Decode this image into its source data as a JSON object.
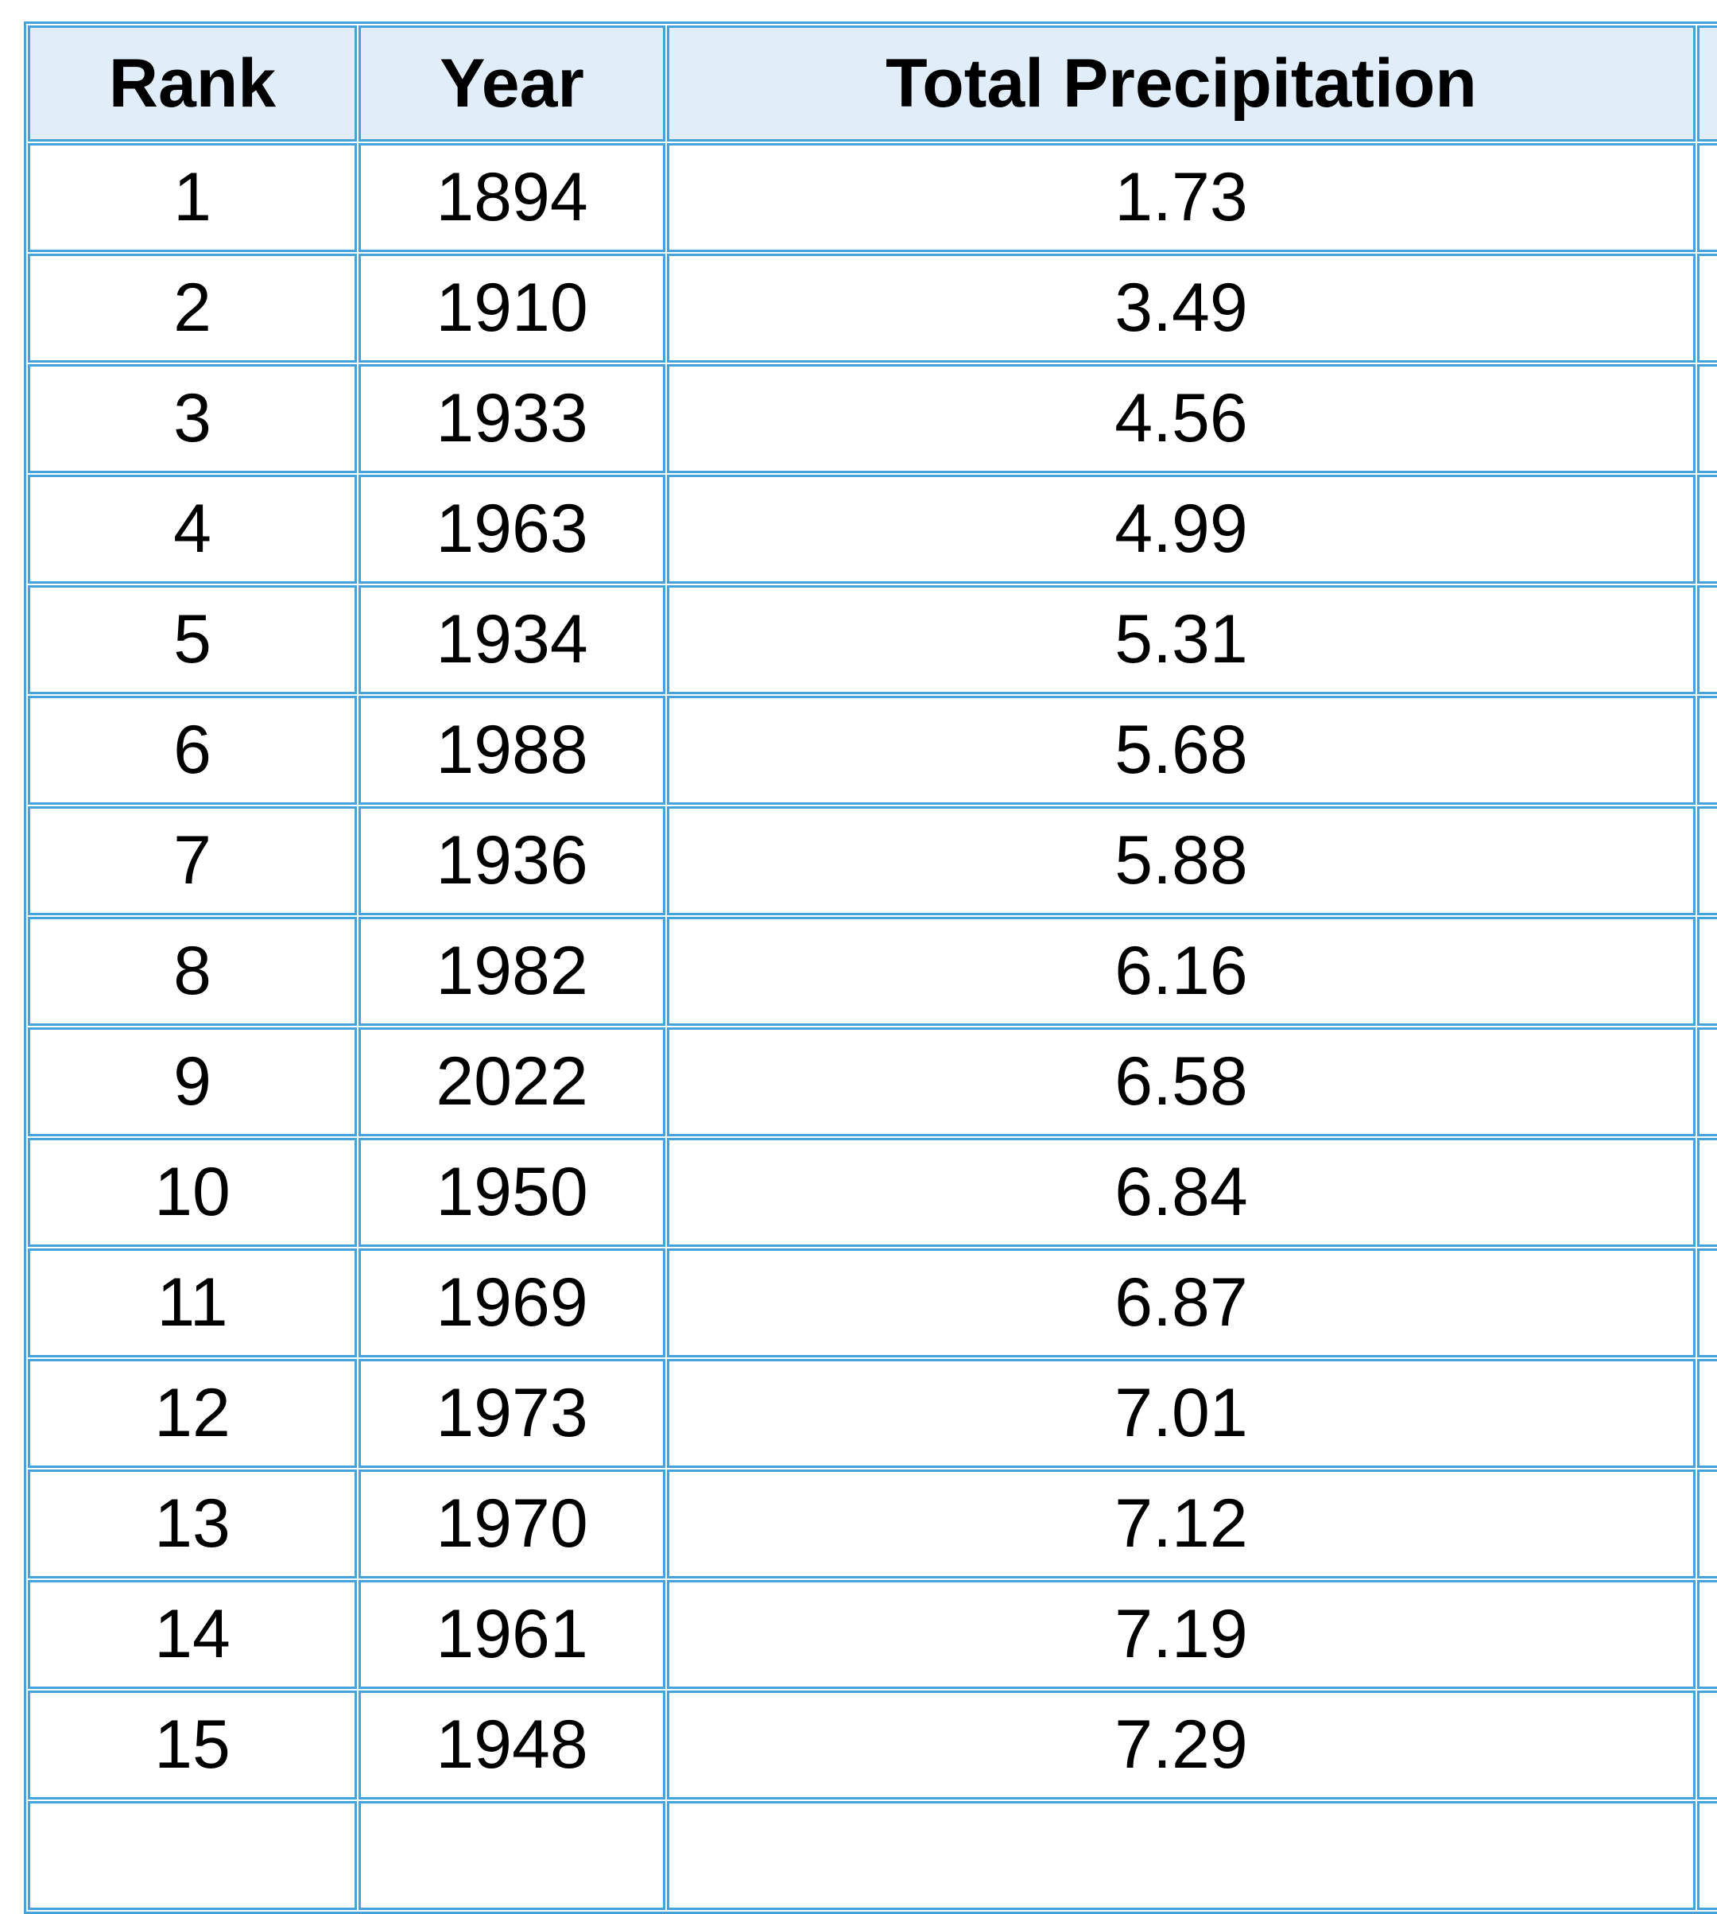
{
  "colors": {
    "border_blue": "#45a2db",
    "header_bg": "#e1edf9",
    "cell_bg": "#ffffff",
    "text": "#000000",
    "page_bg": "#ffffff"
  },
  "table": {
    "columns": [
      {
        "label": "Rank"
      },
      {
        "label": "Year"
      },
      {
        "label": "Total Precipitation"
      },
      {
        "label": ""
      }
    ],
    "rows": [
      {
        "rank": "1",
        "year": "1894",
        "precip": "1.73",
        "extra": ""
      },
      {
        "rank": "2",
        "year": "1910",
        "precip": "3.49",
        "extra": ""
      },
      {
        "rank": "3",
        "year": "1933",
        "precip": "4.56",
        "extra": ""
      },
      {
        "rank": "4",
        "year": "1963",
        "precip": "4.99",
        "extra": ""
      },
      {
        "rank": "5",
        "year": "1934",
        "precip": "5.31",
        "extra": ""
      },
      {
        "rank": "6",
        "year": "1988",
        "precip": "5.68",
        "extra": ""
      },
      {
        "rank": "7",
        "year": "1936",
        "precip": "5.88",
        "extra": ""
      },
      {
        "rank": "8",
        "year": "1982",
        "precip": "6.16",
        "extra": ""
      },
      {
        "rank": "9",
        "year": "2022",
        "precip": "6.58",
        "extra": ""
      },
      {
        "rank": "10",
        "year": "1950",
        "precip": "6.84",
        "extra": ""
      },
      {
        "rank": "11",
        "year": "1969",
        "precip": "6.87",
        "extra": ""
      },
      {
        "rank": "12",
        "year": "1973",
        "precip": "7.01",
        "extra": ""
      },
      {
        "rank": "13",
        "year": "1970",
        "precip": "7.12",
        "extra": ""
      },
      {
        "rank": "14",
        "year": "1961",
        "precip": "7.19",
        "extra": ""
      },
      {
        "rank": "15",
        "year": "1948",
        "precip": "7.29",
        "extra": ""
      },
      {
        "rank": "",
        "year": "",
        "precip": "",
        "extra": ""
      }
    ]
  },
  "chart_data": {
    "type": "table",
    "title": "",
    "columns": [
      "Rank",
      "Year",
      "Total Precipitation"
    ],
    "rows": [
      [
        1,
        1894,
        1.73
      ],
      [
        2,
        1910,
        3.49
      ],
      [
        3,
        1933,
        4.56
      ],
      [
        4,
        1963,
        4.99
      ],
      [
        5,
        1934,
        5.31
      ],
      [
        6,
        1988,
        5.68
      ],
      [
        7,
        1936,
        5.88
      ],
      [
        8,
        1982,
        6.16
      ],
      [
        9,
        2022,
        6.58
      ],
      [
        10,
        1950,
        6.84
      ],
      [
        11,
        1969,
        6.87
      ],
      [
        12,
        1973,
        7.01
      ],
      [
        13,
        1970,
        7.12
      ],
      [
        14,
        1961,
        7.19
      ],
      [
        15,
        1948,
        7.29
      ]
    ],
    "layout_hints": {
      "header_fill": "#e1edf9",
      "grid": "on",
      "partial_fourth_column_clipped_right": true,
      "partial_sixteenth_row_clipped_bottom": true
    }
  }
}
